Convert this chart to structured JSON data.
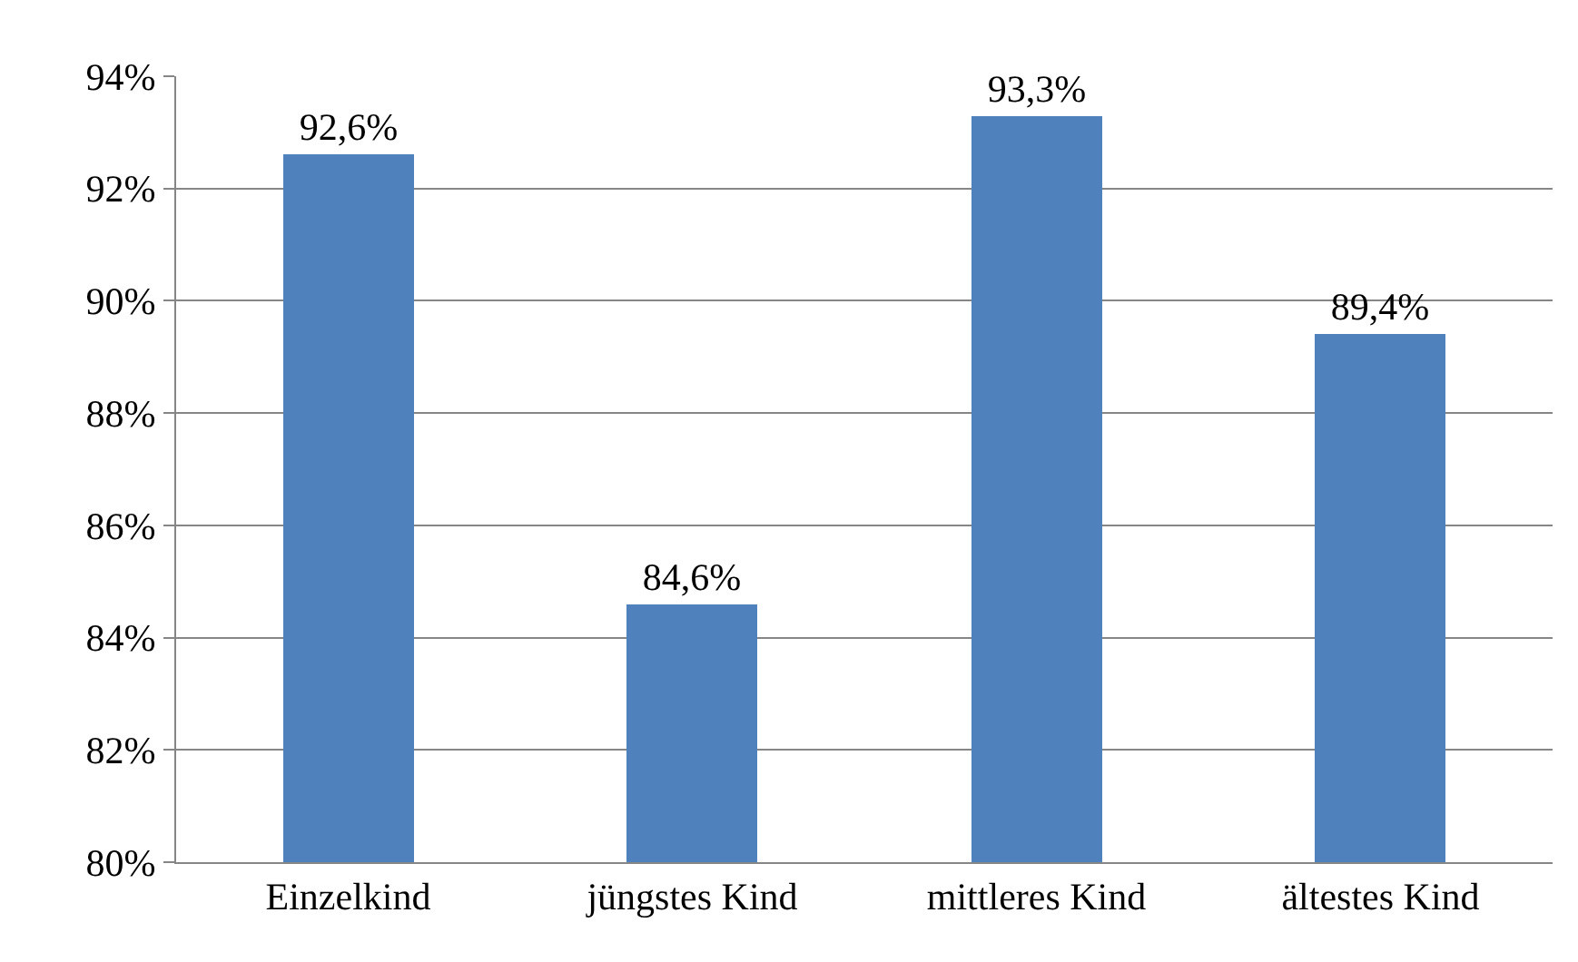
{
  "chart_data": {
    "type": "bar",
    "categories": [
      "Einzelkind",
      "jüngstes Kind",
      "mittleres Kind",
      "ältestes Kind"
    ],
    "values": [
      92.6,
      84.6,
      93.3,
      89.4
    ],
    "value_labels": [
      "92,6%",
      "84,6%",
      "93,3%",
      "89,4%"
    ],
    "color": "#4f81bd",
    "ylim": [
      80,
      94
    ],
    "yticks": [
      {
        "value": 80,
        "label": "80%"
      },
      {
        "value": 82,
        "label": "82%"
      },
      {
        "value": 84,
        "label": "84%"
      },
      {
        "value": 86,
        "label": "86%"
      },
      {
        "value": 88,
        "label": "88%"
      },
      {
        "value": 90,
        "label": "90%"
      },
      {
        "value": 92,
        "label": "92%"
      },
      {
        "value": 94,
        "label": "94%"
      }
    ],
    "grid": "y"
  }
}
